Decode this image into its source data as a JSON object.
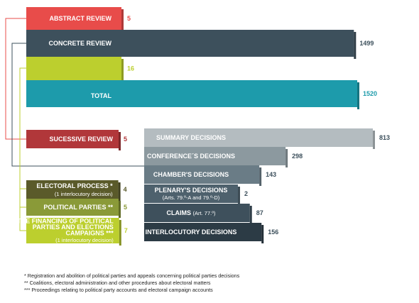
{
  "colors": {
    "abstract": "#e84c4a",
    "concrete": "#3d505c",
    "unlabeled_top": "#bccf2e",
    "total": "#1d9bab",
    "successive": "#b1373a",
    "electoral": "#5a5a2a",
    "parties": "#8a9a38",
    "financing": "#bccf2e",
    "summary": "#b4bcc0",
    "conference": "#8c999f",
    "chamber": "#6a7c86",
    "plenary": "#4e616d",
    "claims": "#3e505c",
    "interlocutory": "#2c3b45"
  },
  "chart_data": {
    "type": "bar",
    "orientation": "horizontal",
    "top_group": {
      "categories": [
        "ABSTRACT REVIEW",
        "CONCRETE REVIEW",
        "",
        "TOTAL"
      ],
      "values": [
        5,
        1499,
        16,
        1520
      ]
    },
    "left_group": {
      "categories": [
        "SUCESSIVE REVIEW",
        "ELECTORAL PROCESS *",
        "POLITICAL PARTIES **",
        "THE FINANCING OF POLITICAL PARTIES AND ELECTIONS CAMPAIGNS ***"
      ],
      "subtitles": [
        "",
        "(1 interlocutory decision)",
        "",
        "(1 interlocutory decision)"
      ],
      "values": [
        5,
        4,
        5,
        7
      ]
    },
    "right_group": {
      "categories": [
        "SUMMARY DECISIONS",
        "CONFERENCE´S DECISIONS",
        "CHAMBER'S DECISIONS",
        "PLENARY'S DECISIONS",
        "CLAIMS",
        "INTERLOCUTORY DECISIONS"
      ],
      "subtitles": [
        "",
        "",
        "",
        "(Arts. 79.º-A and 79.º-D)",
        "(Art. 77.º)",
        ""
      ],
      "values": [
        813,
        298,
        143,
        2,
        87,
        156
      ]
    }
  },
  "footnotes": [
    "* Registration and abolition of political parties and appeals concerning political parties decisions",
    "** Coalitions, electoral administration and other procedures about electoral matters",
    "*** Proceedings relating to political party accounts and electoral campaign accounts"
  ]
}
